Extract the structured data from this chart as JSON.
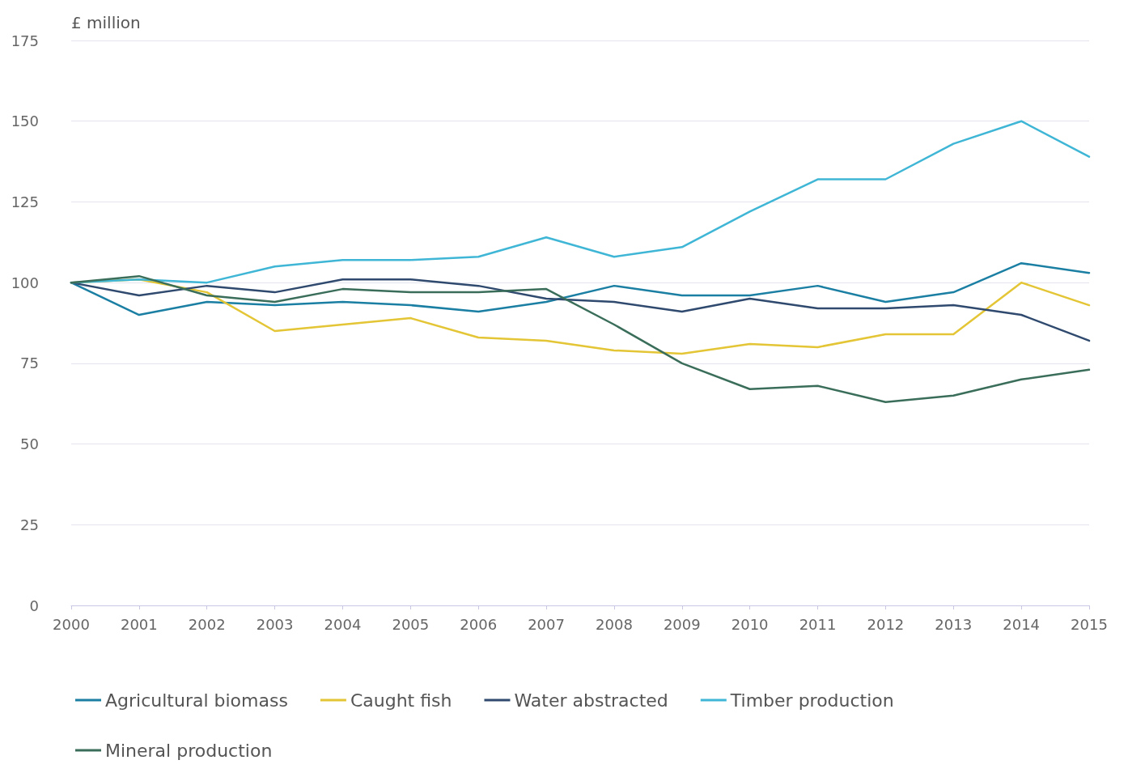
{
  "chart_data": {
    "type": "line",
    "ylabel": "£ million",
    "categories": [
      "2000",
      "2001",
      "2002",
      "2003",
      "2004",
      "2005",
      "2006",
      "2007",
      "2008",
      "2009",
      "2010",
      "2011",
      "2012",
      "2013",
      "2014",
      "2015"
    ],
    "series": [
      {
        "name": "Agricultural biomass",
        "color": "#1b7fa3",
        "values": [
          100,
          90,
          94,
          93,
          94,
          93,
          91,
          94,
          99,
          96,
          96,
          99,
          94,
          97,
          106,
          103
        ]
      },
      {
        "name": "Caught fish",
        "color": "#e3c535",
        "values": [
          100,
          101,
          97,
          85,
          87,
          89,
          83,
          82,
          79,
          78,
          81,
          80,
          84,
          84,
          100,
          93
        ]
      },
      {
        "name": "Water abstracted",
        "color": "#2f4a6e",
        "values": [
          100,
          96,
          99,
          97,
          101,
          101,
          99,
          95,
          94,
          91,
          95,
          92,
          92,
          93,
          90,
          82
        ]
      },
      {
        "name": "Timber production",
        "color": "#3fb6d5",
        "values": [
          100,
          101,
          100,
          105,
          107,
          107,
          108,
          114,
          108,
          111,
          122,
          132,
          132,
          143,
          150,
          139
        ]
      },
      {
        "name": "Mineral production",
        "color": "#3a6e5a",
        "values": [
          100,
          102,
          96,
          94,
          98,
          97,
          97,
          98,
          87,
          75,
          67,
          68,
          63,
          65,
          70,
          73
        ]
      }
    ],
    "ylim": [
      0,
      175
    ],
    "yticks": [
      0,
      25,
      50,
      75,
      100,
      125,
      150,
      175
    ],
    "grid": "y",
    "legend": "bottom left",
    "marker": "none",
    "line_style": "solid"
  }
}
